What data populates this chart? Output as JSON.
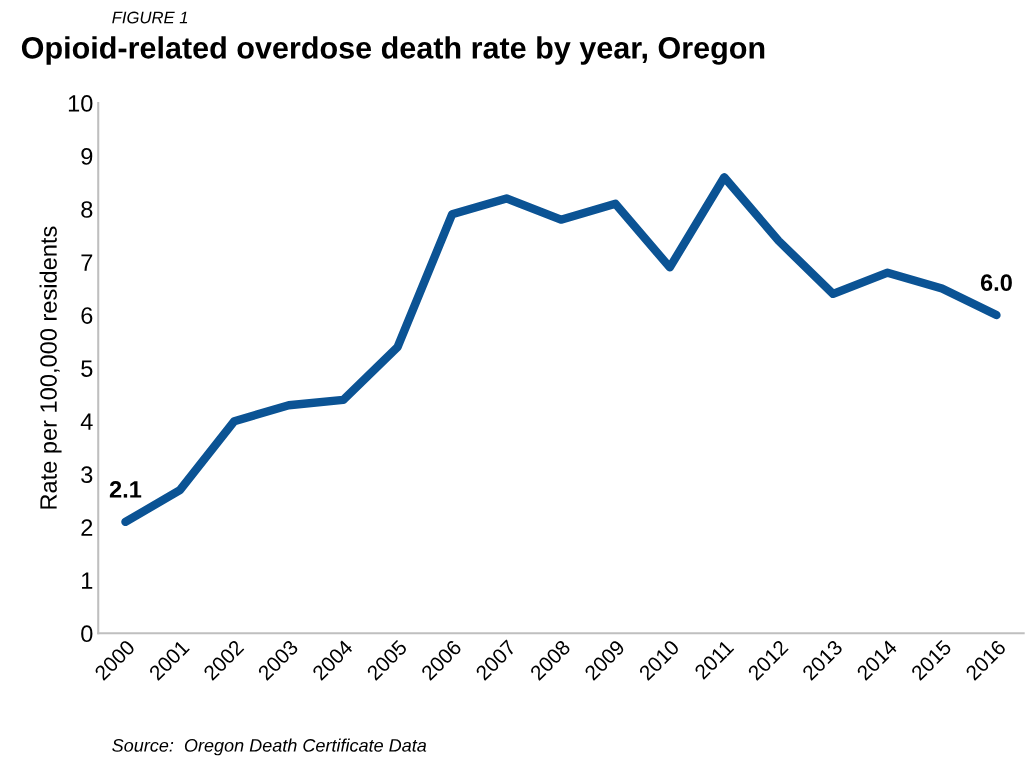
{
  "chart_data": {
    "type": "line",
    "title": "Opioid-related overdose death rate by year, Oregon",
    "ylabel": "Rate per 100,000 residents",
    "categories": [
      "2000",
      "2001",
      "2002",
      "2003",
      "2004",
      "2005",
      "2006",
      "2007",
      "2008",
      "2009",
      "2010",
      "2011",
      "2012",
      "2013",
      "2014",
      "2015",
      "2016"
    ],
    "series": [
      {
        "color": "#0b5394",
        "values": [
          2.1,
          2.7,
          4.0,
          4.3,
          4.4,
          5.4,
          7.9,
          8.2,
          7.8,
          8.1,
          6.9,
          8.6,
          7.4,
          6.4,
          6.8,
          6.5,
          6.0
        ],
        "value_labels": [
          "2.1",
          null,
          null,
          null,
          null,
          null,
          null,
          null,
          null,
          null,
          null,
          null,
          null,
          null,
          null,
          null,
          "6.0"
        ]
      }
    ],
    "ylim": [
      0,
      10
    ],
    "yticks": [
      0,
      1,
      2,
      3,
      4,
      5,
      6,
      7,
      8,
      9,
      10
    ],
    "grid": false,
    "legend": false,
    "marker": "none",
    "line_style": "solid",
    "annotations": [
      "FIGURE 1",
      "Source:  Oregon Death Certificate Data"
    ]
  }
}
